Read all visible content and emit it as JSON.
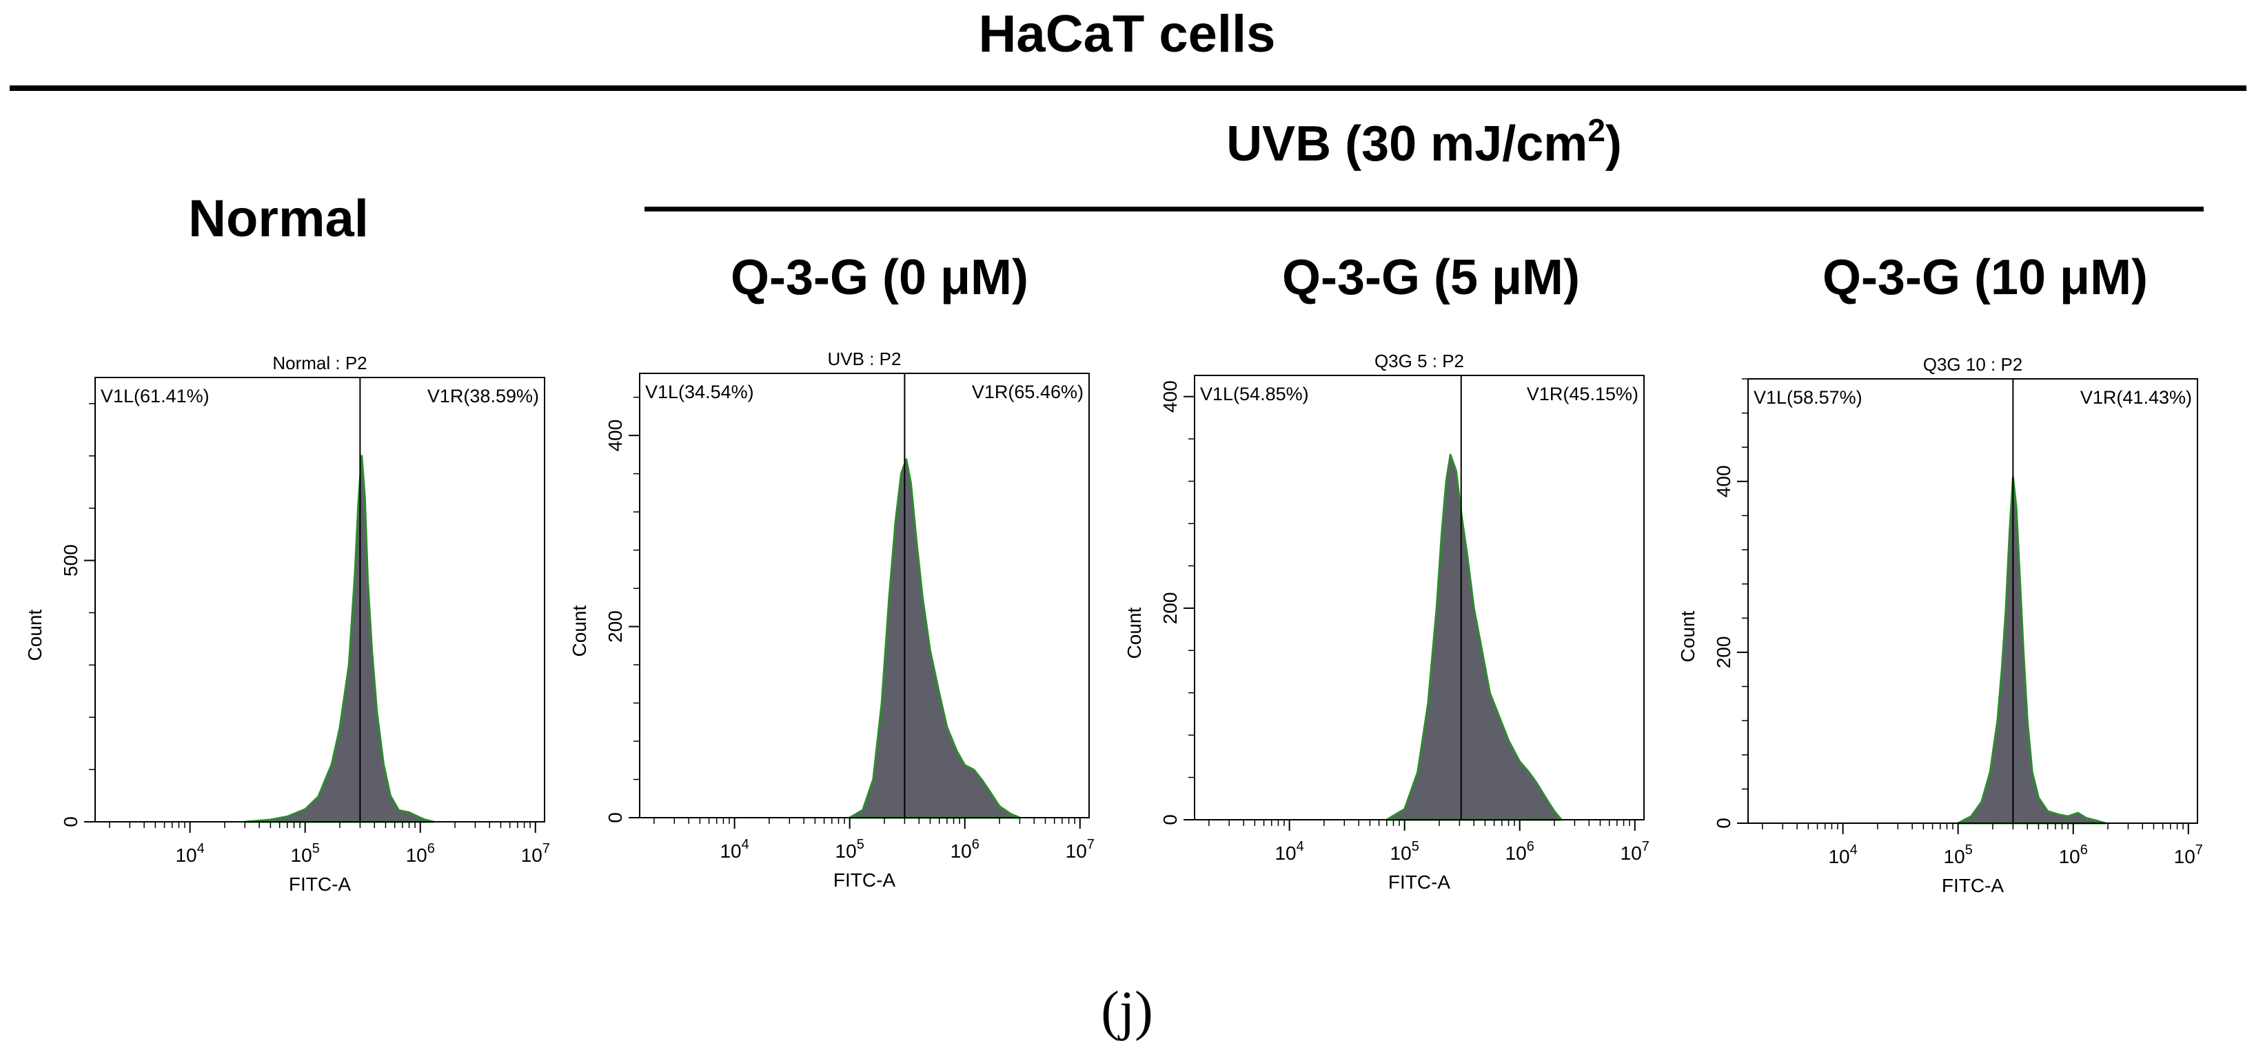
{
  "figure": {
    "main_title": "HaCaT cells",
    "uvb_title_prefix": "UVB (30 mJ/cm",
    "uvb_title_sup": "2",
    "uvb_title_suffix": ")",
    "normal_title": "Normal",
    "group_titles": [
      "Q-3-G (0 μM)",
      "Q-3-G (5 μM)",
      "Q-3-G (10 μM)"
    ],
    "panel_label": "(j)"
  },
  "colors": {
    "fill": "#5f5f6a",
    "outline": "#2e8b2e",
    "axis": "#000000",
    "text": "#000000"
  },
  "chart_data": [
    {
      "type": "area",
      "title": "Normal : P2",
      "xlabel": "FITC-A",
      "ylabel": "Count",
      "xscale": "log",
      "xlim": [
        1500,
        12000000
      ],
      "xticks": [
        10000,
        100000,
        1000000,
        10000000
      ],
      "xtick_labels": [
        "10^4",
        "10^5",
        "10^6",
        "10^7"
      ],
      "ylim": [
        0,
        850
      ],
      "yticks": [
        0,
        500
      ],
      "gate_x": 300000,
      "gate_labels": [
        "V1L(61.41%)",
        "V1R(38.59%)"
      ],
      "series": [
        {
          "name": "Normal",
          "x": [
            30000,
            50000,
            70000,
            100000,
            130000,
            170000,
            200000,
            240000,
            270000,
            290000,
            310000,
            330000,
            350000,
            380000,
            420000,
            480000,
            550000,
            650000,
            800000,
            950000,
            1100000,
            1300000
          ],
          "y": [
            0,
            4,
            10,
            24,
            48,
            110,
            180,
            300,
            470,
            610,
            700,
            620,
            460,
            330,
            210,
            110,
            50,
            22,
            18,
            10,
            4,
            0
          ]
        }
      ]
    },
    {
      "type": "area",
      "title": "UVB : P2",
      "xlabel": "FITC-A",
      "ylabel": "Count",
      "xscale": "log",
      "xlim": [
        1500,
        12000000
      ],
      "xticks": [
        10000,
        100000,
        1000000,
        10000000
      ],
      "xtick_labels": [
        "10^4",
        "10^5",
        "10^6",
        "10^7"
      ],
      "ylim": [
        0,
        465
      ],
      "yticks": [
        0,
        200,
        400
      ],
      "gate_x": 300000,
      "gate_labels": [
        "V1L(34.54%)",
        "V1R(65.46%)"
      ],
      "series": [
        {
          "name": "UVB",
          "x": [
            100000,
            130000,
            160000,
            190000,
            220000,
            250000,
            280000,
            310000,
            340000,
            380000,
            430000,
            500000,
            600000,
            700000,
            850000,
            1000000,
            1200000,
            1400000,
            1700000,
            2000000,
            2500000,
            3000000
          ],
          "y": [
            0,
            8,
            40,
            120,
            230,
            310,
            360,
            375,
            350,
            290,
            230,
            175,
            130,
            95,
            70,
            55,
            50,
            40,
            25,
            12,
            4,
            0
          ]
        }
      ]
    },
    {
      "type": "area",
      "title": "Q3G 5 : P2",
      "xlabel": "FITC-A",
      "ylabel": "Count",
      "xscale": "log",
      "xlim": [
        1500,
        12000000
      ],
      "xticks": [
        10000,
        100000,
        1000000,
        10000000
      ],
      "xtick_labels": [
        "10^4",
        "10^5",
        "10^6",
        "10^7"
      ],
      "ylim": [
        0,
        420
      ],
      "yticks": [
        0,
        200,
        400
      ],
      "gate_x": 310000,
      "gate_labels": [
        "V1L(54.85%)",
        "V1R(45.15%)"
      ],
      "series": [
        {
          "name": "Q3G 5",
          "x": [
            70000,
            100000,
            130000,
            160000,
            190000,
            210000,
            230000,
            250000,
            280000,
            310000,
            350000,
            400000,
            470000,
            550000,
            650000,
            800000,
            1000000,
            1200000,
            1400000,
            1700000,
            2000000,
            2300000
          ],
          "y": [
            0,
            10,
            45,
            110,
            200,
            270,
            320,
            345,
            330,
            290,
            250,
            200,
            160,
            120,
            100,
            75,
            55,
            45,
            35,
            20,
            8,
            0
          ]
        }
      ]
    },
    {
      "type": "area",
      "title": "Q3G 10 : P2",
      "xlabel": "FITC-A",
      "ylabel": "Count",
      "xscale": "log",
      "xlim": [
        1500,
        12000000
      ],
      "xticks": [
        10000,
        100000,
        1000000,
        10000000
      ],
      "xtick_labels": [
        "10^4",
        "10^5",
        "10^6",
        "10^7"
      ],
      "ylim": [
        0,
        520
      ],
      "yticks": [
        0,
        200,
        400
      ],
      "gate_x": 300000,
      "gate_labels": [
        "V1L(58.57%)",
        "V1R(41.43%)"
      ],
      "series": [
        {
          "name": "Q3G 10",
          "x": [
            100000,
            130000,
            160000,
            190000,
            220000,
            240000,
            260000,
            280000,
            300000,
            320000,
            340000,
            370000,
            400000,
            440000,
            500000,
            600000,
            750000,
            900000,
            1100000,
            1300000,
            1600000,
            1900000
          ],
          "y": [
            0,
            8,
            25,
            60,
            120,
            180,
            250,
            340,
            405,
            370,
            300,
            200,
            120,
            60,
            30,
            14,
            10,
            8,
            12,
            6,
            3,
            0
          ]
        }
      ]
    }
  ]
}
